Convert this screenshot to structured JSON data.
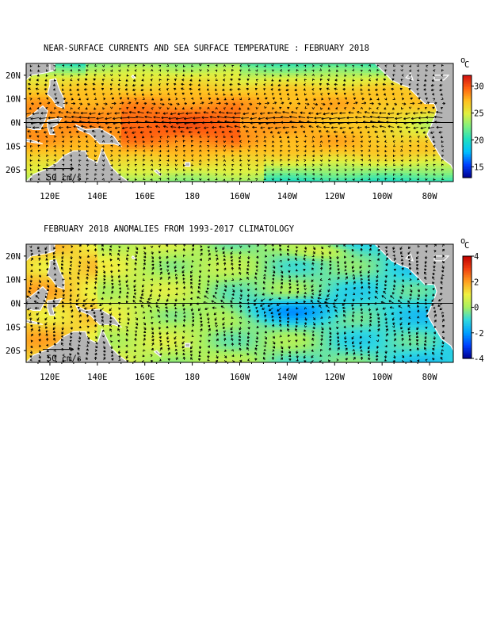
{
  "chart_data": [
    {
      "type": "heatmap",
      "title": "NEAR-SURFACE CURRENTS AND SEA SURFACE TEMPERATURE : FEBRUARY 2018",
      "variable": "sea surface temperature with near-surface current vectors",
      "x_ticks": [
        "120E",
        "140E",
        "160E",
        "180",
        "160W",
        "140W",
        "120W",
        "100W",
        "80W"
      ],
      "y_ticks": [
        "20N",
        "10N",
        "0N",
        "10S",
        "20S"
      ],
      "xlim_deg_east": [
        110,
        290
      ],
      "ylim_deg": [
        -25,
        25
      ],
      "colorbar": {
        "unit": "°C",
        "ticks": [
          "30",
          "25",
          "20",
          "15"
        ],
        "range": [
          13,
          32
        ],
        "colors": [
          "#000090",
          "#0040ff",
          "#00c0ff",
          "#20e0c0",
          "#80f080",
          "#e0f040",
          "#ffc020",
          "#ff6010",
          "#d01010"
        ]
      },
      "reference_arrow_label": "50 cm/s",
      "equator_line": true,
      "land_color": "#b4b4b4"
    },
    {
      "type": "heatmap",
      "title": "FEBRUARY 2018 ANOMALIES FROM 1993-2017 CLIMATOLOGY",
      "variable": "sea surface temperature anomaly with current anomaly vectors",
      "x_ticks": [
        "120E",
        "140E",
        "160E",
        "180",
        "160W",
        "140W",
        "120W",
        "100W",
        "80W"
      ],
      "y_ticks": [
        "20N",
        "10N",
        "0N",
        "10S",
        "20S"
      ],
      "xlim_deg_east": [
        110,
        290
      ],
      "ylim_deg": [
        -25,
        25
      ],
      "colorbar": {
        "unit": "°C",
        "ticks": [
          "4",
          "2",
          "0",
          "-2",
          "-4"
        ],
        "range": [
          -4,
          4
        ],
        "colors": [
          "#000090",
          "#0040ff",
          "#00a0ff",
          "#30d8e0",
          "#a8f060",
          "#f0f040",
          "#ffa020",
          "#f04010",
          "#c00000"
        ]
      },
      "reference_arrow_label": "50 cm/s",
      "equator_line": true,
      "land_color": "#b4b4b4"
    }
  ],
  "unit_symbol_o": "o",
  "unit_symbol_c": "C"
}
